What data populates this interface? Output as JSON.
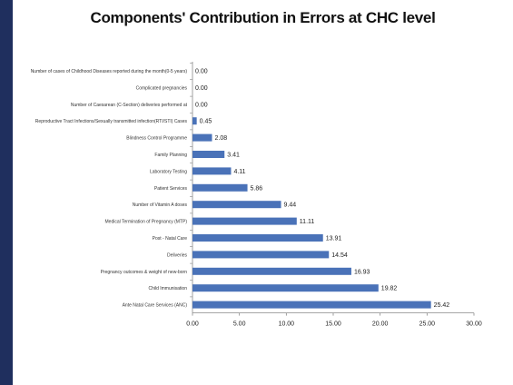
{
  "chart_data": {
    "type": "bar",
    "orientation": "horizontal",
    "title": "Components' Contribution in Errors at CHC level",
    "xlabel": "",
    "ylabel": "",
    "xlim": [
      0,
      30
    ],
    "xticks": [
      "0.00",
      "5.00",
      "10.00",
      "15.00",
      "20.00",
      "25.00",
      "30.00"
    ],
    "grid": false,
    "legend": "none",
    "bar_color": "#4a72b8",
    "categories": [
      "Number of cases of Childhood Diseases reported during the month(0-5 years)",
      "Complicated pregnancies",
      "Number of Caesarean (C-Section) deliveries performed at",
      "Reproductive Tract Infections/Sexually transmitted infection(RTI/STI) Cases",
      "Blindness Control Programme",
      "Family Planning",
      "Laboratory Testing",
      "Patient Services",
      "Number of Vitamin A doses",
      "Medical Termination of Pregnancy (MTP)",
      "Post - Natal Care",
      "Deliveries",
      "Pregnancy outcomes & weight of new-born",
      "Child Immunisation",
      "Ante Natal Care Services (ANC)"
    ],
    "values": [
      0.0,
      0.0,
      0.0,
      0.45,
      2.08,
      3.41,
      4.11,
      5.86,
      9.44,
      11.11,
      13.91,
      14.54,
      16.93,
      19.82,
      25.42
    ],
    "value_labels": [
      "0.00",
      "0.00",
      "0.00",
      "0.45",
      "2.08",
      "3.41",
      "4.11",
      "5.86",
      "9.44",
      "11.11",
      "13.91",
      "14.54",
      "16.93",
      "19.82",
      "25.42"
    ]
  }
}
